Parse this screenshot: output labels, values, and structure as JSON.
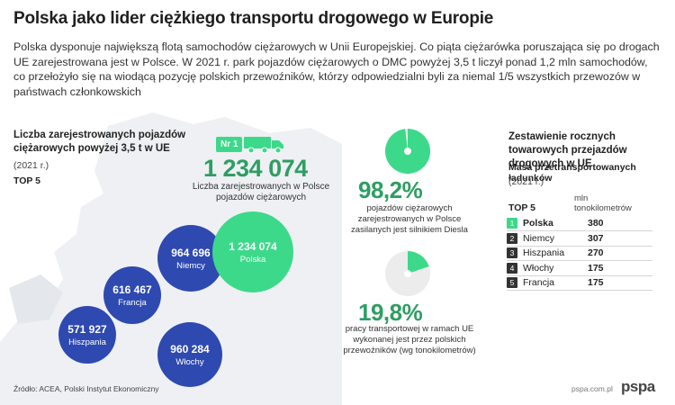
{
  "title": "Polska jako lider ciężkiego transportu drogowego w Europie",
  "intro": "Polska dysponuje największą flotą samochodów ciężarowych w Unii Europejskiej. Co piąta ciężarówka poruszająca się po drogach UE zarejestrowana jest w Polsce. W 2021 r. park pojazdów ciężarowych o DMC powyżej 3,5 t liczył ponad 1,2 mln samochodów, co przełożyło się na wiodącą pozycję polskich przewoźników, którzy odpowiedzialni byli za niemal 1/5 wszystkich przewozów w państwach członkowskich",
  "colors": {
    "green": "#3cd98a",
    "dark_green": "#2e9e63",
    "blue": "#2e49b0",
    "map_gray": "#eef0f3"
  },
  "left": {
    "heading": "Liczba zarejestrowanych pojazdów ciężarowych powyżej 3,5 t w UE",
    "year": "(2021 r.)",
    "top5": "TOP 5",
    "badge": "Nr 1",
    "badge_icon": "truck-icon",
    "highlight_value": "1 234 074",
    "highlight_caption": "Liczba zarejestrowanych w Polsce pojazdów ciężarowych"
  },
  "middle": {
    "pct1": "98,2%",
    "pct1_caption": "pojazdów ciężarowych zarejestrowanych w Polsce zasilanych jest silnikiem Diesla",
    "pct2": "19,8%",
    "pct2_caption": "pracy transportowej w ramach UE wykonanej jest przez polskich przewoźników (wg tonokilometrów)"
  },
  "right": {
    "heading": "Zestawienie rocznych towarowych przejazdów drogowych w UE",
    "mass": "Masa przetransportowanych ładunków",
    "year": "(2021 r.)",
    "top5": "TOP 5",
    "unit": "mln tonokilometrów"
  },
  "chart_data": [
    {
      "type": "bubble",
      "title": "Liczba zarejestrowanych pojazdów ciężarowych powyżej 3,5 t w UE",
      "categories": [
        "Polska",
        "Niemcy",
        "Francja",
        "Hiszpania",
        "Włochy"
      ],
      "values": [
        1234074,
        964696,
        616467,
        571927,
        960284
      ],
      "labels": [
        "1 234 074",
        "964 696",
        "616 467",
        "571 927",
        "960 284"
      ]
    },
    {
      "type": "pie",
      "values": [
        98.2,
        1.8
      ],
      "label": "98,2%"
    },
    {
      "type": "pie",
      "values": [
        19.8,
        80.2
      ],
      "label": "19,8%"
    },
    {
      "type": "table",
      "title": "Zestawienie rocznych towarowych przejazdów drogowych w UE",
      "ranks": [
        "1",
        "2",
        "3",
        "4",
        "5"
      ],
      "categories": [
        "Polska",
        "Niemcy",
        "Hiszpania",
        "Włochy",
        "Francja"
      ],
      "values": [
        380,
        307,
        270,
        175,
        175
      ]
    }
  ],
  "footer": {
    "source": "Źródło: ACEA, Polski Instytut Ekonomiczny",
    "site": "pspa.com.pl",
    "logo": "pspa"
  }
}
